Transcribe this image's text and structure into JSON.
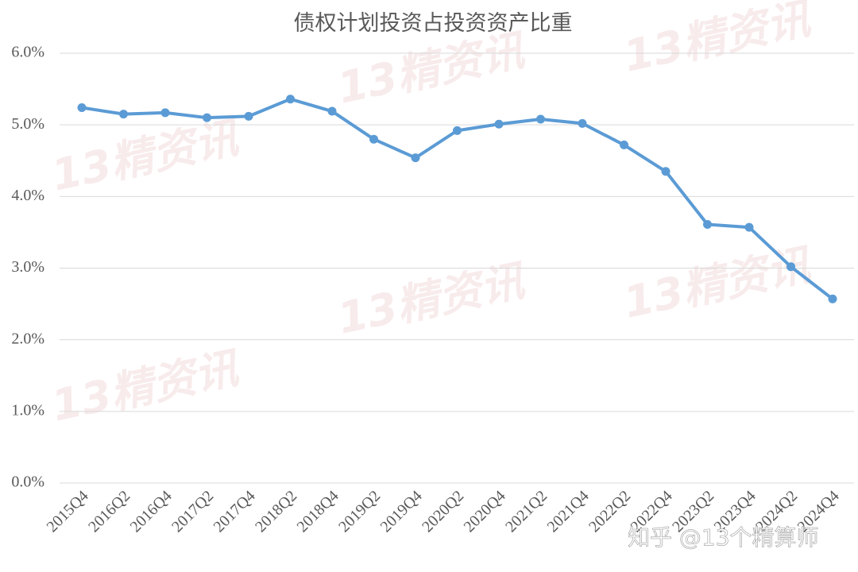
{
  "chart_data": {
    "type": "line",
    "title": "债权计划投资占投资资产比重",
    "categories": [
      "2015Q4",
      "2016Q2",
      "2016Q4",
      "2017Q2",
      "2017Q4",
      "2018Q2",
      "2018Q4",
      "2019Q2",
      "2019Q4",
      "2020Q2",
      "2020Q4",
      "2021Q2",
      "2021Q4",
      "2022Q2",
      "2022Q4",
      "2023Q2",
      "2023Q4",
      "2024Q2",
      "2024Q4"
    ],
    "series": [
      {
        "name": "债权计划投资占投资资产比重",
        "color": "#5b9bd5",
        "values": [
          5.24,
          5.15,
          5.17,
          5.1,
          5.12,
          5.36,
          5.19,
          4.8,
          4.54,
          4.92,
          5.01,
          5.08,
          5.02,
          4.72,
          4.35,
          3.61,
          3.57,
          3.02,
          2.57
        ]
      }
    ],
    "ylim": [
      0,
      6
    ],
    "yticks": [
      {
        "value": 0,
        "label": "0.0%"
      },
      {
        "value": 1,
        "label": "1.0%"
      },
      {
        "value": 2,
        "label": "2.0%"
      },
      {
        "value": 3,
        "label": "3.0%"
      },
      {
        "value": 4,
        "label": "4.0%"
      },
      {
        "value": 5,
        "label": "5.0%"
      },
      {
        "value": 6,
        "label": "6.0%"
      }
    ],
    "grid": true,
    "stamp": "13精资讯",
    "watermark": "知乎 @13个精算师"
  }
}
